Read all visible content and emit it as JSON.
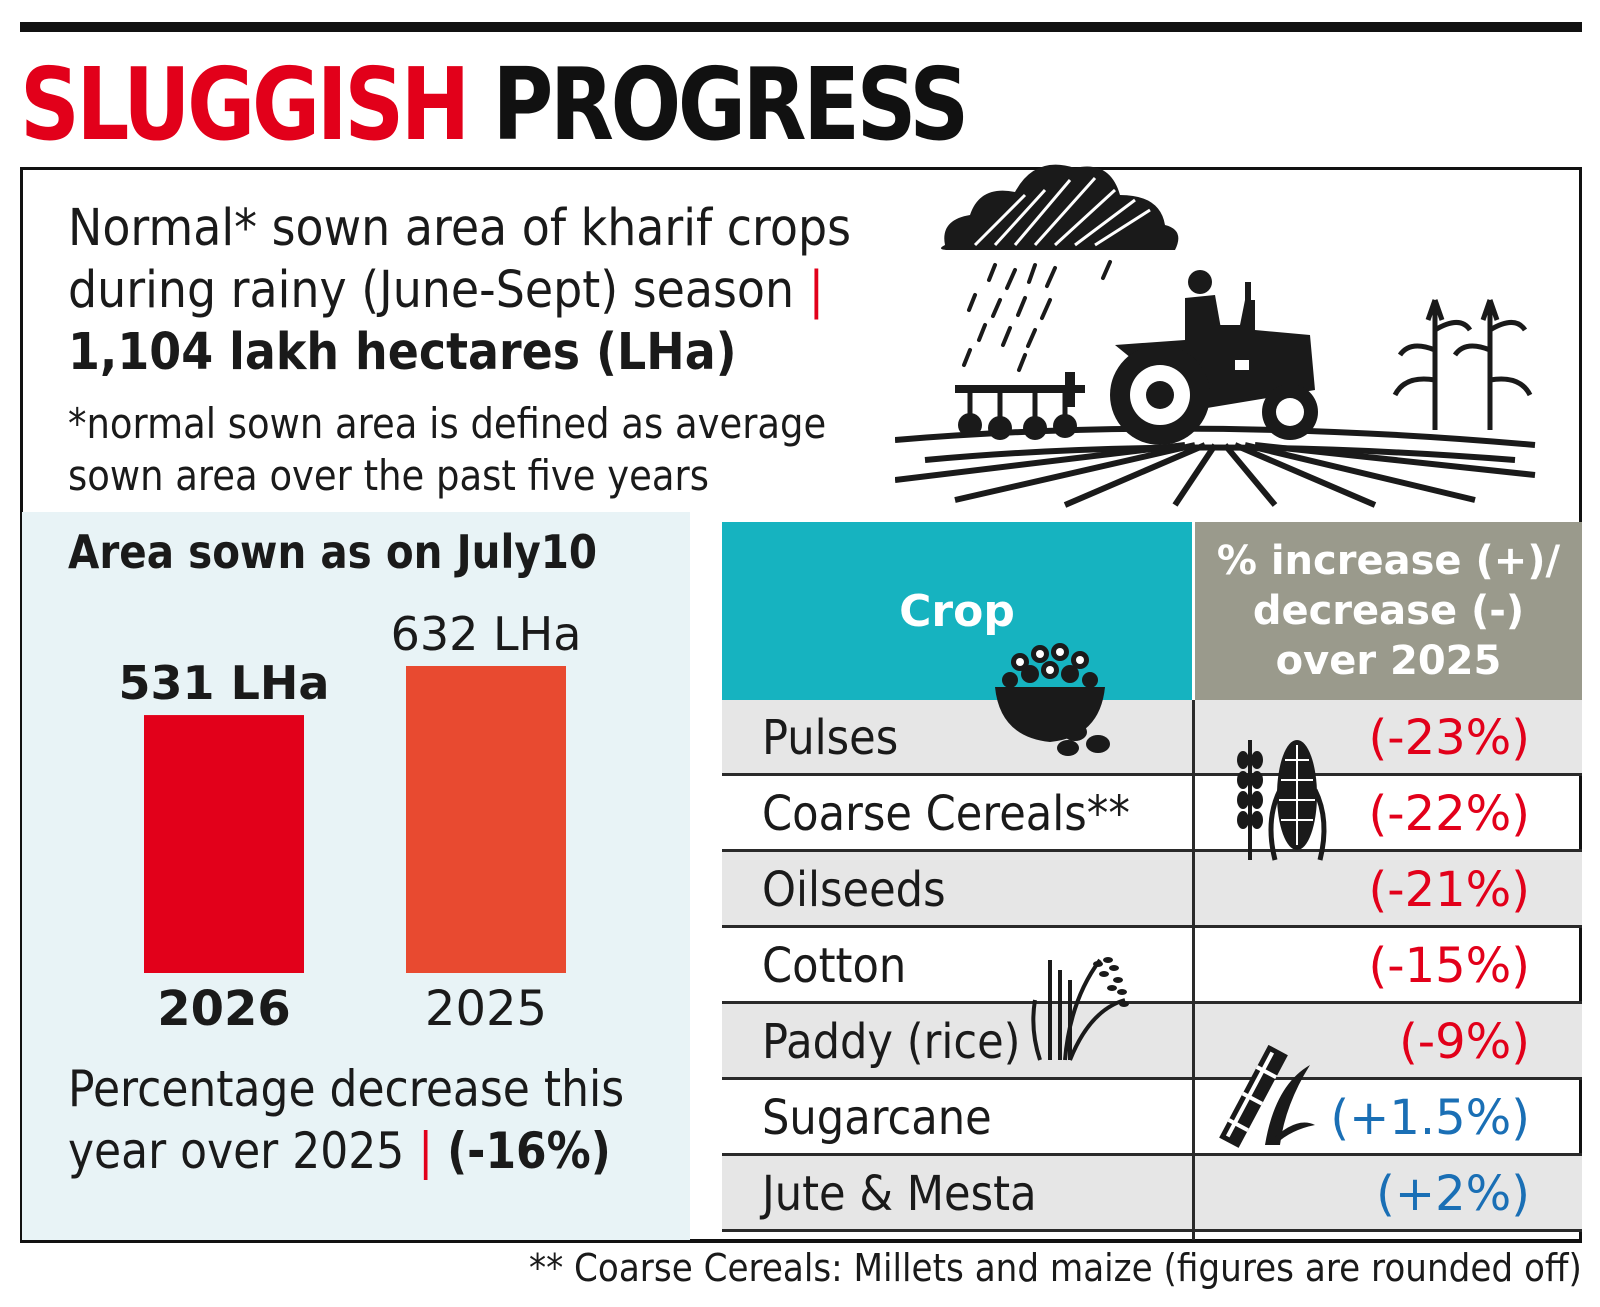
{
  "title": {
    "part1": "SLUGGISH",
    "part2": "PROGRESS"
  },
  "intro": {
    "line1": "Normal* sown area of kharif crops",
    "line2": "during rainy (June-Sept) season",
    "pipe": "|",
    "line3": "1,104 lakh hectares (LHa)"
  },
  "note": {
    "line1": "*normal sown area is defined as average",
    "line2": "sown area over the past five years"
  },
  "colors": {
    "red": "#e2001a",
    "orange": "#e84a30",
    "teal": "#16b3c0",
    "grey": "#9a9a8c",
    "blue": "#1a6fb5",
    "panel_bg": "#e8f3f6"
  },
  "icons": [
    "rain-cloud-icon",
    "tractor-farmer-icon",
    "maize-plant-icon",
    "bowl-of-pulses-icon",
    "corn-and-millet-icon",
    "rice-paddy-icon",
    "sugarcane-icon"
  ],
  "chart_data": [
    {
      "type": "bar",
      "title": "Area sown as on July10",
      "categories": [
        "2026",
        "2025"
      ],
      "values": [
        531,
        632
      ],
      "value_labels": [
        "531 LHa",
        "632 LHa"
      ],
      "bar_colors": [
        "#e2001a",
        "#e84a30"
      ],
      "ylim": [
        0,
        632
      ],
      "grid": false
    },
    {
      "type": "table",
      "columns": [
        "Crop",
        "% increase (+)/ decrease (-) over 2025"
      ],
      "rows": [
        {
          "crop": "Pulses",
          "change": "(-23%)",
          "value": -23
        },
        {
          "crop": "Coarse Cereals**",
          "change": "(-22%)",
          "value": -22
        },
        {
          "crop": "Oilseeds",
          "change": "(-21%)",
          "value": -21
        },
        {
          "crop": "Cotton",
          "change": "(-15%)",
          "value": -15
        },
        {
          "crop": "Paddy (rice)",
          "change": "(-9%)",
          "value": -9
        },
        {
          "crop": "Sugarcane",
          "change": "(+1.5%)",
          "value": 1.5
        },
        {
          "crop": "Jute & Mesta",
          "change": "(+2%)",
          "value": 2
        }
      ]
    }
  ],
  "summary": {
    "line1": "Percentage decrease this",
    "line2": "year over 2025",
    "pipe": "|",
    "value": "(-16%)"
  },
  "table_header": {
    "crop": "Crop",
    "pct_line1": "% increase (+)/",
    "pct_line2": "decrease (-)",
    "pct_line3": "over 2025"
  },
  "footnote": "** Coarse Cereals: Millets and maize (figures are rounded off)"
}
